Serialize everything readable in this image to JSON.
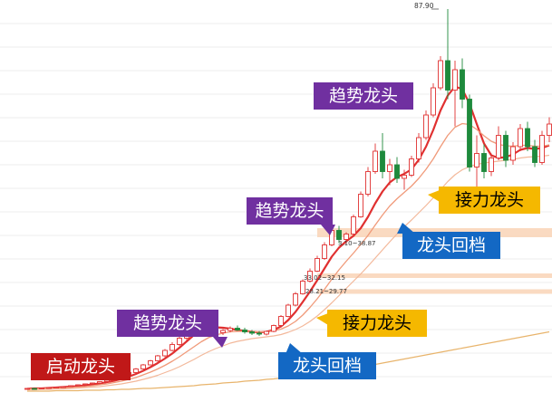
{
  "chart_data": {
    "type": "candlestick",
    "title": "",
    "xlabel": "",
    "ylabel": "",
    "grid": true,
    "price_high_label": "87.90",
    "price_annotations": [
      "3.10~38.87",
      "33.02~32.15",
      "28.21~29.77"
    ],
    "candles": [
      [
        4.0,
        4.2,
        3.8,
        4.1
      ],
      [
        4.1,
        4.2,
        3.9,
        4.0
      ],
      [
        4.0,
        4.3,
        3.9,
        4.2
      ],
      [
        4.2,
        4.4,
        4.1,
        4.3
      ],
      [
        4.3,
        4.5,
        4.2,
        4.4
      ],
      [
        4.4,
        4.6,
        4.3,
        4.5
      ],
      [
        4.5,
        4.8,
        4.4,
        4.7
      ],
      [
        4.7,
        5.0,
        4.6,
        4.9
      ],
      [
        4.9,
        5.2,
        4.8,
        5.1
      ],
      [
        5.1,
        5.4,
        5.0,
        5.3
      ],
      [
        5.3,
        5.7,
        5.2,
        5.6
      ],
      [
        5.6,
        6.0,
        5.5,
        5.9
      ],
      [
        5.9,
        6.5,
        5.8,
        6.4
      ],
      [
        6.4,
        7.0,
        6.3,
        6.9
      ],
      [
        6.9,
        7.8,
        6.8,
        7.6
      ],
      [
        7.6,
        8.6,
        7.5,
        8.4
      ],
      [
        8.4,
        9.5,
        8.3,
        9.3
      ],
      [
        9.3,
        10.4,
        9.2,
        10.2
      ],
      [
        10.2,
        11.5,
        10.0,
        11.3
      ],
      [
        11.3,
        12.8,
        11.0,
        12.5
      ],
      [
        12.5,
        14.3,
        12.3,
        13.8
      ],
      [
        13.8,
        15.8,
        13.5,
        15.2
      ],
      [
        15.2,
        17.2,
        14.6,
        16.8
      ],
      [
        16.8,
        18.6,
        16.0,
        17.9
      ],
      [
        17.9,
        19.6,
        17.0,
        18.7
      ],
      [
        18.7,
        19.2,
        16.5,
        17.0
      ],
      [
        17.0,
        17.6,
        15.8,
        16.4
      ],
      [
        16.4,
        17.2,
        15.9,
        16.9
      ],
      [
        16.9,
        17.8,
        16.5,
        17.4
      ],
      [
        17.4,
        18.0,
        16.8,
        17.0
      ],
      [
        17.0,
        17.5,
        16.2,
        16.6
      ],
      [
        16.6,
        17.0,
        15.9,
        16.3
      ],
      [
        16.3,
        16.8,
        15.7,
        16.1
      ],
      [
        16.1,
        16.9,
        15.8,
        16.7
      ],
      [
        16.7,
        18.2,
        16.5,
        18.0
      ],
      [
        18.0,
        20.3,
        17.8,
        20.0
      ],
      [
        20.0,
        22.8,
        19.8,
        22.5
      ],
      [
        22.5,
        25.4,
        22.2,
        25.0
      ],
      [
        25.0,
        28.2,
        24.8,
        27.8
      ],
      [
        27.8,
        30.6,
        27.5,
        30.0
      ],
      [
        30.0,
        33.4,
        29.8,
        32.8
      ],
      [
        32.8,
        36.4,
        32.5,
        35.8
      ],
      [
        35.8,
        39.4,
        35.5,
        39.0
      ],
      [
        39.0,
        40.0,
        36.2,
        37.0
      ],
      [
        37.0,
        38.6,
        36.0,
        38.2
      ],
      [
        38.2,
        42.5,
        38.0,
        42.0
      ],
      [
        42.0,
        47.6,
        41.8,
        47.0
      ],
      [
        47.0,
        53.0,
        46.5,
        52.0
      ],
      [
        52.0,
        58.2,
        51.5,
        56.5
      ],
      [
        56.5,
        60.5,
        50.5,
        52.0
      ],
      [
        52.0,
        54.8,
        49.0,
        53.5
      ],
      [
        53.5,
        55.2,
        49.5,
        50.5
      ],
      [
        50.5,
        52.4,
        48.0,
        51.2
      ],
      [
        51.2,
        55.5,
        50.8,
        54.8
      ],
      [
        54.8,
        60.5,
        54.0,
        59.5
      ],
      [
        59.5,
        65.5,
        59.0,
        64.5
      ],
      [
        64.5,
        71.5,
        64.0,
        70.5
      ],
      [
        70.5,
        77.5,
        70.0,
        76.5
      ],
      [
        76.5,
        87.9,
        68.0,
        70.0
      ],
      [
        70.0,
        76.5,
        62.0,
        74.5
      ],
      [
        74.5,
        77.0,
        66.0,
        68.0
      ],
      [
        68.0,
        69.0,
        52.0,
        53.0
      ],
      [
        53.0,
        60.0,
        48.0,
        56.0
      ],
      [
        56.0,
        58.0,
        50.5,
        52.0
      ],
      [
        52.0,
        56.0,
        51.0,
        55.0
      ],
      [
        55.0,
        62.0,
        54.5,
        60.0
      ],
      [
        60.0,
        61.0,
        53.0,
        54.5
      ],
      [
        54.5,
        58.5,
        53.5,
        57.5
      ],
      [
        57.5,
        62.5,
        56.5,
        61.5
      ],
      [
        61.5,
        63.0,
        56.5,
        57.5
      ],
      [
        57.5,
        59.0,
        53.0,
        54.0
      ],
      [
        54.0,
        61.0,
        53.5,
        60.0
      ],
      [
        60.0,
        64.0,
        58.5,
        62.5
      ]
    ],
    "moving_averages": [
      {
        "color": "#e03030",
        "width": 2.2,
        "values": [
          4.0,
          4.1,
          4.1,
          4.2,
          4.3,
          4.4,
          4.5,
          4.6,
          4.8,
          5.0,
          5.2,
          5.5,
          5.8,
          6.2,
          6.7,
          7.3,
          8.0,
          8.8,
          9.7,
          10.7,
          11.8,
          13.1,
          14.5,
          15.9,
          17.0,
          17.5,
          17.6,
          17.5,
          17.3,
          17.0,
          16.8,
          16.6,
          16.5,
          16.6,
          17.0,
          17.8,
          19.2,
          21.0,
          23.2,
          25.5,
          28.0,
          30.6,
          33.2,
          35.2,
          36.6,
          37.8,
          39.5,
          42.0,
          45.0,
          47.6,
          49.6,
          50.8,
          51.5,
          52.5,
          54.6,
          57.5,
          61.2,
          65.5,
          68.8,
          70.8,
          70.2,
          67.0,
          62.5,
          58.2,
          55.6,
          55.0,
          55.2,
          55.8,
          56.8,
          57.2,
          57.0,
          57.2,
          57.8
        ]
      },
      {
        "color": "#f09a7a",
        "width": 1.3,
        "values": [
          3.9,
          4.0,
          4.0,
          4.1,
          4.1,
          4.2,
          4.3,
          4.4,
          4.5,
          4.7,
          4.9,
          5.1,
          5.4,
          5.7,
          6.1,
          6.5,
          7.1,
          7.7,
          8.4,
          9.2,
          10.1,
          11.1,
          12.2,
          13.3,
          14.4,
          15.3,
          15.9,
          16.3,
          16.6,
          16.7,
          16.7,
          16.6,
          16.6,
          16.6,
          16.8,
          17.2,
          17.9,
          18.9,
          20.3,
          22.0,
          23.9,
          26.0,
          28.2,
          30.3,
          32.2,
          34.0,
          35.9,
          37.9,
          40.2,
          42.4,
          44.4,
          46.0,
          47.4,
          48.8,
          50.5,
          52.5,
          54.8,
          57.5,
          60.0,
          61.8,
          62.6,
          62.4,
          61.3,
          59.9,
          58.7,
          58.0,
          57.7,
          57.6,
          57.8,
          57.8,
          57.6,
          57.6,
          57.9
        ]
      },
      {
        "color": "#f3b89a",
        "width": 1.2,
        "values": [
          3.8,
          3.8,
          3.9,
          3.9,
          4.0,
          4.0,
          4.1,
          4.2,
          4.3,
          4.4,
          4.5,
          4.7,
          4.9,
          5.1,
          5.4,
          5.7,
          6.1,
          6.5,
          7.0,
          7.6,
          8.2,
          8.9,
          9.7,
          10.5,
          11.4,
          12.2,
          12.9,
          13.5,
          14.1,
          14.5,
          14.8,
          15.1,
          15.3,
          15.5,
          15.7,
          16.0,
          16.5,
          17.1,
          17.9,
          18.9,
          20.1,
          21.5,
          23.0,
          24.6,
          26.2,
          27.8,
          29.4,
          31.1,
          32.9,
          34.7,
          36.5,
          38.2,
          39.8,
          41.3,
          42.9,
          44.5,
          46.2,
          48.0,
          49.8,
          51.3,
          52.4,
          53.1,
          53.6,
          53.9,
          54.1,
          54.3,
          54.5,
          54.7,
          55.0,
          55.2,
          55.3,
          55.4,
          55.6
        ]
      },
      {
        "color": "#e8b46c",
        "width": 1.2,
        "values": [
          3.5,
          3.5,
          3.5,
          3.5,
          3.6,
          3.6,
          3.6,
          3.6,
          3.7,
          3.7,
          3.7,
          3.8,
          3.8,
          3.9,
          3.9,
          4.0,
          4.1,
          4.1,
          4.2,
          4.3,
          4.4,
          4.5,
          4.6,
          4.7,
          4.9,
          5.0,
          5.1,
          5.3,
          5.4,
          5.5,
          5.7,
          5.8,
          5.9,
          6.1,
          6.2,
          6.4,
          6.5,
          6.7,
          6.9,
          7.1,
          7.3,
          7.5,
          7.8,
          8.0,
          8.3,
          8.5,
          8.8,
          9.1,
          9.4,
          9.7,
          10.0,
          10.3,
          10.6,
          10.9,
          11.2,
          11.5,
          11.8,
          12.1,
          12.4,
          12.7,
          13.0,
          13.3,
          13.6,
          13.9,
          14.2,
          14.5,
          14.8,
          15.1,
          15.4,
          15.7,
          16.0,
          16.3,
          16.6
        ]
      }
    ],
    "resistance_bands": [
      [
        37.5,
        39.5
      ],
      [
        28.5,
        29.5
      ],
      [
        25.0,
        26.0
      ]
    ],
    "colors": {
      "up": "#e03030",
      "down": "#1e8a3c",
      "band": "#f9d3b6",
      "grid": "#dcdcdc"
    }
  },
  "callouts": [
    {
      "label": "启动龙头",
      "bg": "#c01818",
      "dark": false
    },
    {
      "label": "趋势龙头",
      "bg": "#7030a0",
      "dark": false
    },
    {
      "label": "趋势龙头",
      "bg": "#7030a0",
      "dark": false
    },
    {
      "label": "趋势龙头",
      "bg": "#7030a0",
      "dark": false
    },
    {
      "label": "龙头回档",
      "bg": "#1368c4",
      "dark": false
    },
    {
      "label": "龙头回档",
      "bg": "#1368c4",
      "dark": false
    },
    {
      "label": "接力龙头",
      "bg": "#f5b800",
      "dark": true
    },
    {
      "label": "接力龙头",
      "bg": "#f5b800",
      "dark": true
    }
  ]
}
